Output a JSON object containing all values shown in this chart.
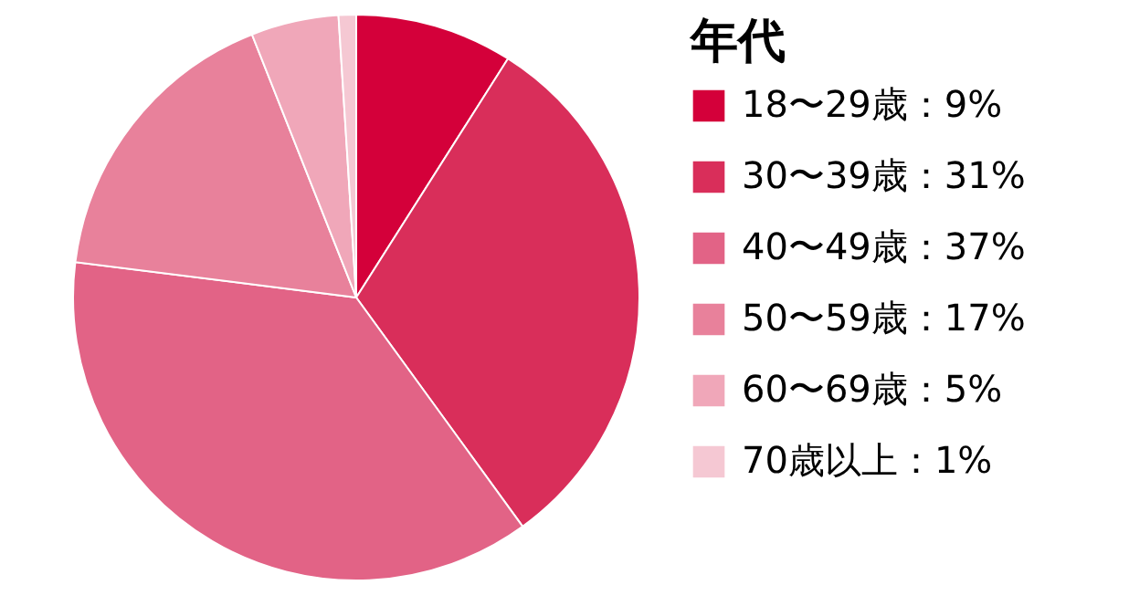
{
  "chart_data": {
    "type": "pie",
    "legend_title": "年代",
    "legend": "right",
    "categories": [
      "18〜29歳：9%",
      "30〜39歳：31%",
      "40〜49歳：37%",
      "50〜59歳：17%",
      "60〜69歳：5%",
      "70歳以上：1%"
    ],
    "values": [
      9,
      31,
      37,
      17,
      5,
      1
    ],
    "colors": [
      "#d4003a",
      "#d92e5a",
      "#e26386",
      "#e8819b",
      "#f0a7b9",
      "#f5c8d3"
    ]
  }
}
